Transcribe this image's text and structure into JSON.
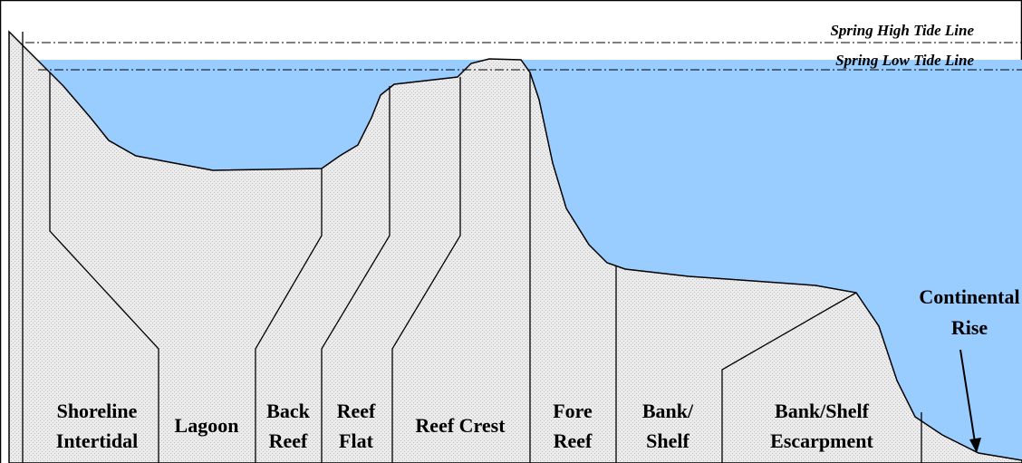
{
  "tide_lines": {
    "high": "Spring High Tide Line",
    "low": "Spring Low Tide Line"
  },
  "zones": [
    {
      "lines": [
        "Shoreline",
        "Intertidal"
      ]
    },
    {
      "lines": [
        "Lagoon"
      ]
    },
    {
      "lines": [
        "Back",
        "Reef"
      ]
    },
    {
      "lines": [
        "Reef",
        "Flat"
      ]
    },
    {
      "lines": [
        "Reef Crest"
      ]
    },
    {
      "lines": [
        "Fore",
        "Reef"
      ]
    },
    {
      "lines": [
        "Bank/",
        "Shelf"
      ]
    },
    {
      "lines": [
        "Bank/Shelf",
        "Escarpment"
      ]
    },
    {
      "lines": [
        "Continental",
        "Rise"
      ]
    }
  ]
}
